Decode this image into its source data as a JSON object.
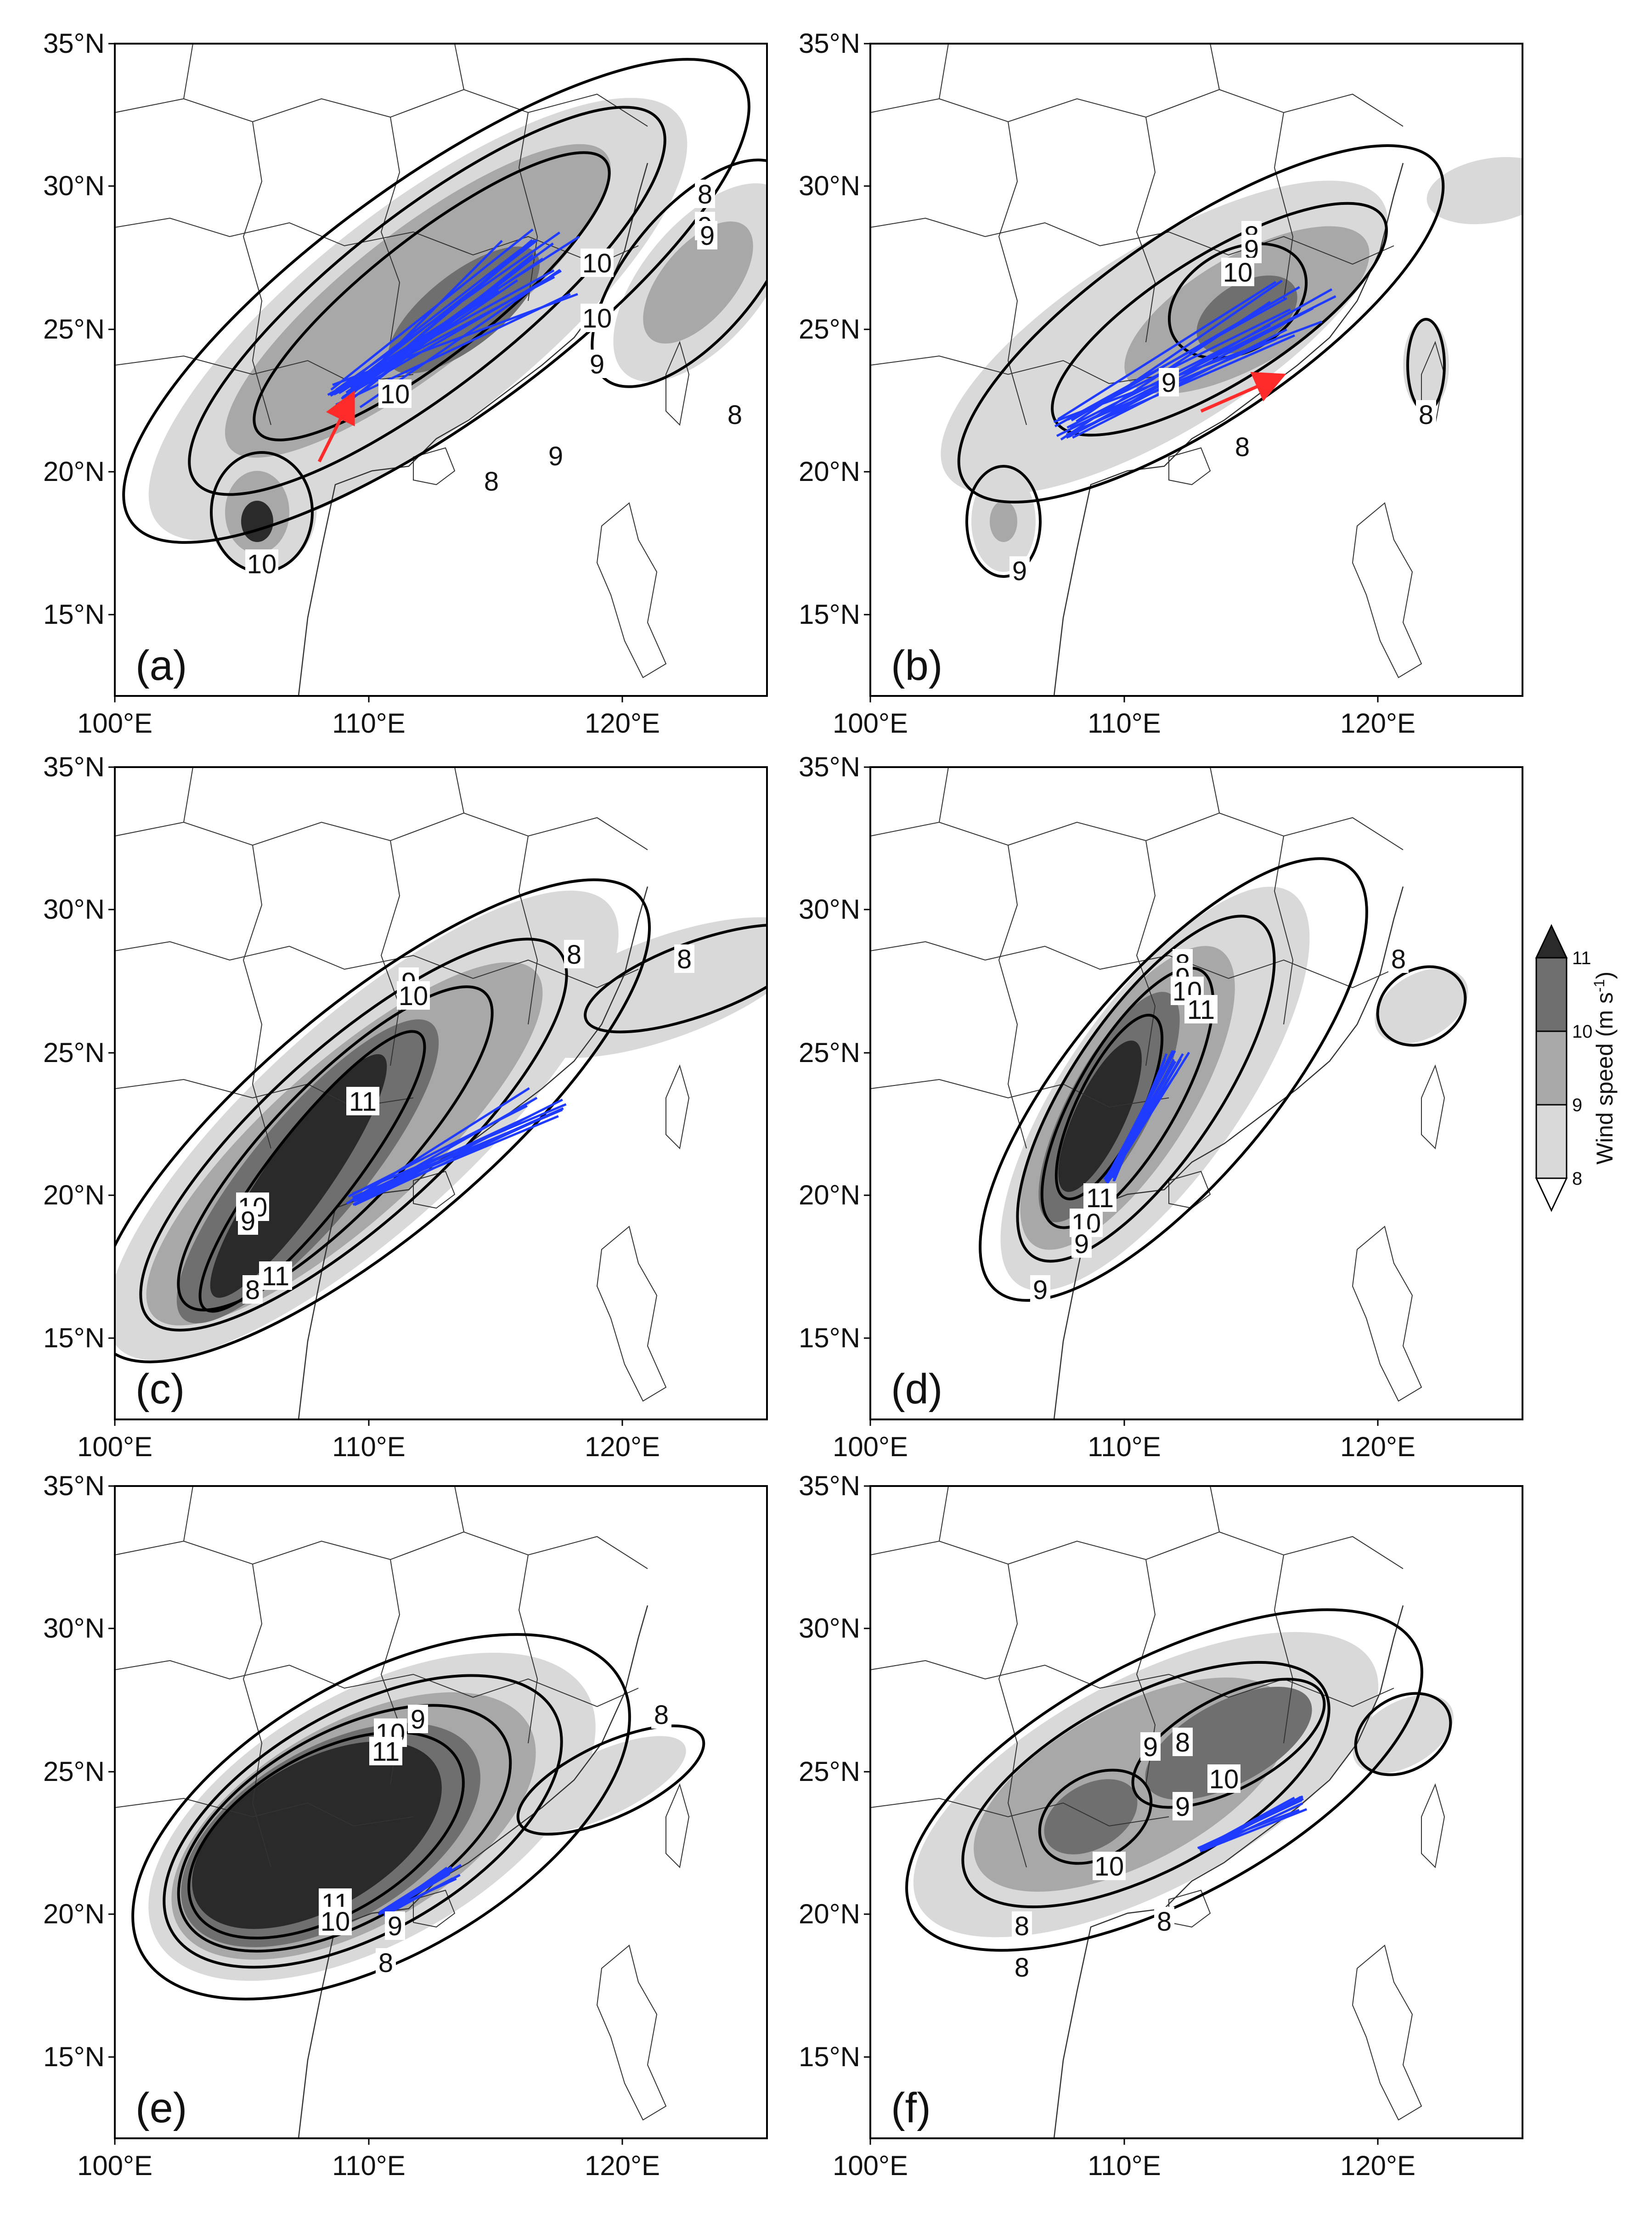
{
  "lon_ticks": [
    "100°E",
    "110°E",
    "120°E"
  ],
  "lat_ticks": [
    "35°N",
    "30°N",
    "25°N",
    "20°N",
    "15°N"
  ],
  "colorbar": {
    "title": "Wind speed (m s-1)",
    "title_main": "Wind speed (m s",
    "title_sup": "-1",
    "title_end": ")",
    "levels": [
      "11",
      "10",
      "9",
      "8"
    ],
    "colors": [
      "#2a2a2a",
      "#6f6f6f",
      "#a8a8a8",
      "#d9d9d9"
    ]
  },
  "colors": {
    "contour": "#000000",
    "trajectory": "#1f3bff",
    "mean_track": "#ff2a2a",
    "boundary": "#333333"
  },
  "panels": [
    {
      "label": "(a)",
      "contour_labels": [
        "8",
        "9",
        "10",
        "9",
        "10",
        "9",
        "10",
        "8",
        "9",
        "10",
        "8"
      ],
      "has_red_arrow": true
    },
    {
      "label": "(b)",
      "contour_labels": [
        "8",
        "9",
        "10",
        "9",
        "8",
        "8",
        "9"
      ],
      "has_red_arrow": true
    },
    {
      "label": "(c)",
      "contour_labels": [
        "8",
        "9",
        "10",
        "11",
        "10",
        "9",
        "11",
        "8",
        "8"
      ],
      "has_red_arrow": false
    },
    {
      "label": "(d)",
      "contour_labels": [
        "8",
        "9",
        "10",
        "11",
        "11",
        "10",
        "9",
        "8",
        "9"
      ],
      "has_red_arrow": false
    },
    {
      "label": "(e)",
      "contour_labels": [
        "9",
        "10",
        "11",
        "11",
        "10",
        "9",
        "8",
        "8"
      ],
      "has_red_arrow": false
    },
    {
      "label": "(f)",
      "contour_labels": [
        "9",
        "8",
        "10",
        "9",
        "10",
        "8",
        "8",
        "8"
      ],
      "has_red_arrow": false
    }
  ]
}
